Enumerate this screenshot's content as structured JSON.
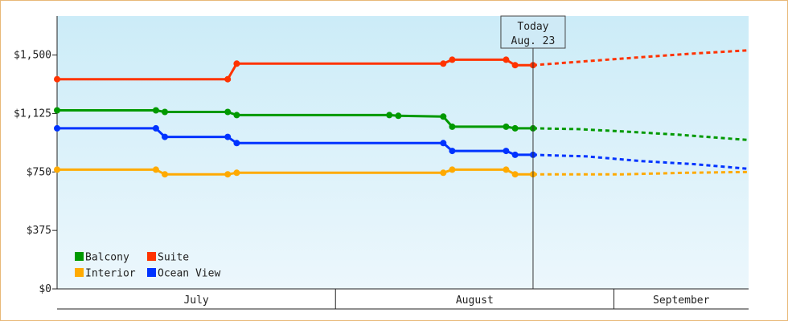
{
  "chart_data": {
    "type": "line",
    "title": "",
    "xlabel": "",
    "ylabel": "",
    "x_start": "2024-07-01",
    "ylim": [
      0,
      1750
    ],
    "y_ticks": [
      {
        "value": 0,
        "label": "$0"
      },
      {
        "value": 375,
        "label": "$375"
      },
      {
        "value": 750,
        "label": "$750"
      },
      {
        "value": 1125,
        "label": "$1,125"
      },
      {
        "value": 1500,
        "label": "$1,500"
      }
    ],
    "months": [
      {
        "label": "July",
        "start": "2024-07-01",
        "end": "2024-08-01"
      },
      {
        "label": "August",
        "start": "2024-08-01",
        "end": "2024-09-01"
      },
      {
        "label": "September",
        "start": "2024-09-01",
        "end": "2024-09-16"
      }
    ],
    "x_end": "2024-09-16",
    "today": {
      "line1": "Today",
      "line2": "Aug. 23",
      "date": "2024-08-23"
    },
    "legend_position": "bottom-left",
    "grid": false,
    "background_gradient": [
      "#ccecf8",
      "#ecf7fc"
    ],
    "series": [
      {
        "name": "Suite",
        "color": "#ff3300",
        "points": [
          [
            "2024-07-01",
            1345
          ],
          [
            "2024-07-20",
            1345
          ],
          [
            "2024-07-21",
            1445
          ],
          [
            "2024-08-13",
            1445
          ],
          [
            "2024-08-14",
            1470
          ],
          [
            "2024-08-20",
            1470
          ],
          [
            "2024-08-21",
            1435
          ],
          [
            "2024-08-23",
            1435
          ]
        ],
        "forecast": [
          [
            "2024-08-23",
            1435
          ],
          [
            "2024-08-30",
            1465
          ],
          [
            "2024-09-05",
            1490
          ],
          [
            "2024-09-10",
            1510
          ],
          [
            "2024-09-16",
            1530
          ]
        ]
      },
      {
        "name": "Balcony",
        "color": "#009900",
        "points": [
          [
            "2024-07-01",
            1145
          ],
          [
            "2024-07-12",
            1145
          ],
          [
            "2024-07-13",
            1135
          ],
          [
            "2024-07-20",
            1135
          ],
          [
            "2024-07-21",
            1115
          ],
          [
            "2024-08-07",
            1115
          ],
          [
            "2024-08-08",
            1110
          ],
          [
            "2024-08-13",
            1105
          ],
          [
            "2024-08-14",
            1040
          ],
          [
            "2024-08-20",
            1040
          ],
          [
            "2024-08-21",
            1030
          ],
          [
            "2024-08-23",
            1030
          ]
        ],
        "forecast": [
          [
            "2024-08-23",
            1030
          ],
          [
            "2024-08-28",
            1025
          ],
          [
            "2024-09-02",
            1010
          ],
          [
            "2024-09-08",
            990
          ],
          [
            "2024-09-16",
            955
          ]
        ]
      },
      {
        "name": "Ocean View",
        "color": "#0033ff",
        "points": [
          [
            "2024-07-01",
            1030
          ],
          [
            "2024-07-12",
            1030
          ],
          [
            "2024-07-13",
            975
          ],
          [
            "2024-07-20",
            975
          ],
          [
            "2024-07-21",
            935
          ],
          [
            "2024-08-13",
            935
          ],
          [
            "2024-08-14",
            885
          ],
          [
            "2024-08-20",
            885
          ],
          [
            "2024-08-21",
            860
          ],
          [
            "2024-08-23",
            860
          ]
        ],
        "forecast": [
          [
            "2024-08-23",
            860
          ],
          [
            "2024-08-29",
            850
          ],
          [
            "2024-09-04",
            820
          ],
          [
            "2024-09-10",
            800
          ],
          [
            "2024-09-16",
            770
          ]
        ]
      },
      {
        "name": "Interior",
        "color": "#ffaa00",
        "points": [
          [
            "2024-07-01",
            765
          ],
          [
            "2024-07-12",
            765
          ],
          [
            "2024-07-13",
            735
          ],
          [
            "2024-07-20",
            735
          ],
          [
            "2024-07-21",
            745
          ],
          [
            "2024-08-13",
            745
          ],
          [
            "2024-08-14",
            765
          ],
          [
            "2024-08-20",
            765
          ],
          [
            "2024-08-21",
            735
          ],
          [
            "2024-08-23",
            735
          ]
        ],
        "forecast": [
          [
            "2024-08-23",
            735
          ],
          [
            "2024-08-26",
            735
          ],
          [
            "2024-09-02",
            735
          ],
          [
            "2024-09-09",
            745
          ],
          [
            "2024-09-16",
            750
          ]
        ]
      }
    ],
    "legend": [
      {
        "name": "Balcony",
        "color": "#009900"
      },
      {
        "name": "Suite",
        "color": "#ff3300"
      },
      {
        "name": "Interior",
        "color": "#ffaa00"
      },
      {
        "name": "Ocean View",
        "color": "#0033ff"
      }
    ]
  }
}
